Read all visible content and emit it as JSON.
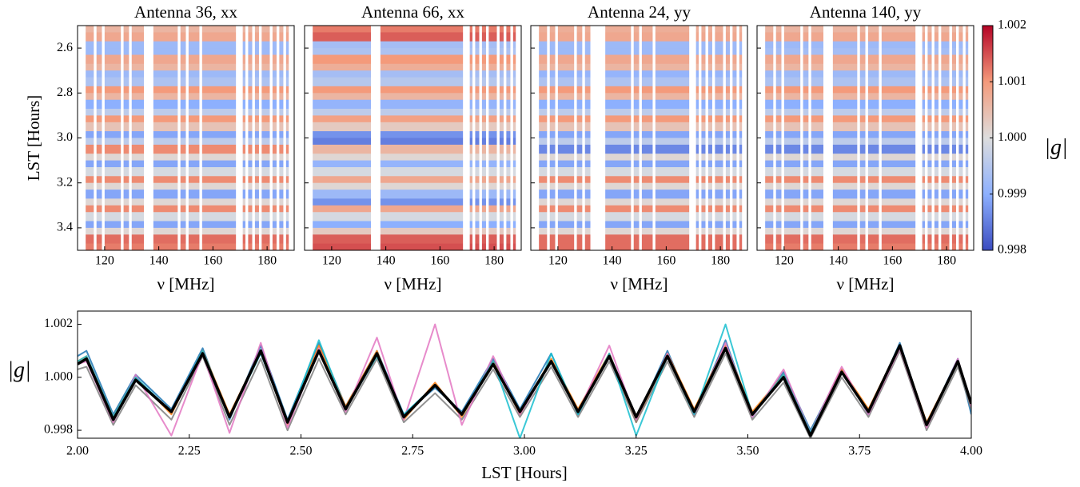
{
  "chart_data": [
    {
      "type": "heatmap",
      "title": "Antenna 36, xx",
      "x_label": "ν [MHz]",
      "y_label": "LST [Hours]",
      "xlim": [
        110,
        190
      ],
      "xticks": [
        120,
        140,
        160,
        180
      ],
      "ylim": [
        3.5,
        2.5
      ],
      "yticks": [
        2.6,
        2.8,
        {
          "value": 3.0,
          "label": "3.0"
        },
        3.2,
        3.4
      ],
      "y_edges": [
        2.5,
        2.53,
        2.57,
        2.6,
        2.63,
        2.67,
        2.7,
        2.73,
        2.77,
        2.8,
        2.83,
        2.87,
        2.9,
        2.93,
        2.97,
        3.0,
        3.03,
        3.07,
        3.1,
        3.13,
        3.17,
        3.2,
        3.23,
        3.27,
        3.3,
        3.33,
        3.37,
        3.4,
        3.43,
        3.47,
        3.5
      ],
      "values": [
        1.0006,
        1.0008,
        0.9992,
        0.9992,
        1.0008,
        1.0006,
        0.9992,
        0.9994,
        1.001,
        1.0006,
        0.999,
        0.9996,
        1.001,
        1.0004,
        0.9989,
        0.9996,
        1.0011,
        1.0001,
        0.9989,
        0.9999,
        1.0011,
        1.0001,
        0.9989,
        1.0001,
        1.0011,
        0.9999,
        0.9989,
        1.0001,
        1.0013,
        1.0012
      ],
      "flags": [
        [
          110,
          113
        ],
        [
          116,
          117
        ],
        [
          119,
          120
        ],
        [
          126,
          127
        ],
        [
          129,
          130
        ],
        [
          134.5,
          138
        ],
        [
          147,
          148
        ],
        [
          150,
          151
        ],
        [
          155,
          156
        ],
        [
          168.5,
          171
        ],
        [
          172,
          173
        ],
        [
          174.5,
          175.5
        ],
        [
          177,
          178
        ],
        [
          181,
          182
        ],
        [
          183.5,
          184.5
        ],
        [
          186,
          187
        ],
        [
          188,
          190
        ]
      ]
    },
    {
      "type": "heatmap",
      "title": "Antenna 66, xx",
      "x_label": "ν [MHz]",
      "xlim": [
        110,
        190
      ],
      "xticks": [
        120,
        140,
        160,
        180
      ],
      "ylim": [
        3.5,
        2.5
      ],
      "yticks": [
        2.6,
        2.8,
        {
          "value": 3.0,
          "label": "3.0"
        },
        3.2,
        3.4
      ],
      "y_edges": [
        2.5,
        2.53,
        2.57,
        2.6,
        2.63,
        2.67,
        2.7,
        2.73,
        2.77,
        2.8,
        2.83,
        2.87,
        2.9,
        2.93,
        2.97,
        3.0,
        3.03,
        3.07,
        3.1,
        3.13,
        3.17,
        3.2,
        3.23,
        3.27,
        3.3,
        3.33,
        3.37,
        3.4,
        3.43,
        3.47,
        3.5
      ],
      "values": [
        1.0012,
        1.0014,
        0.9993,
        0.9994,
        1.001,
        1.0007,
        0.9993,
        0.9995,
        1.001,
        1.0006,
        0.9991,
        0.9996,
        1.0009,
        1.0003,
        0.9987,
        0.9985,
        1.0006,
        1.0001,
        0.9991,
        0.9999,
        1.0008,
        1.0001,
        0.9992,
        0.9987,
        1.0008,
        0.9999,
        0.999,
        1.0003,
        1.0014,
        1.0015
      ],
      "flags": [
        [
          110,
          113
        ],
        [
          134.5,
          138
        ],
        [
          168.5,
          171
        ],
        [
          172,
          173
        ],
        [
          174.5,
          175.5
        ],
        [
          177,
          178
        ],
        [
          181,
          182
        ],
        [
          183.5,
          184.5
        ],
        [
          186,
          187
        ],
        [
          188,
          190
        ]
      ]
    },
    {
      "type": "heatmap",
      "title": "Antenna 24, yy",
      "x_label": "ν [MHz]",
      "xlim": [
        110,
        190
      ],
      "xticks": [
        120,
        140,
        160,
        180
      ],
      "ylim": [
        3.5,
        2.5
      ],
      "yticks": [
        2.6,
        2.8,
        {
          "value": 3.0,
          "label": "3.0"
        },
        3.2,
        3.4
      ],
      "y_edges": [
        2.5,
        2.53,
        2.57,
        2.6,
        2.63,
        2.67,
        2.7,
        2.73,
        2.77,
        2.8,
        2.83,
        2.87,
        2.9,
        2.93,
        2.97,
        3.0,
        3.03,
        3.07,
        3.1,
        3.13,
        3.17,
        3.2,
        3.23,
        3.27,
        3.3,
        3.33,
        3.37,
        3.4,
        3.43,
        3.47,
        3.5
      ],
      "values": [
        1.0007,
        1.0008,
        0.9992,
        0.9992,
        1.0008,
        1.0006,
        0.9991,
        0.9994,
        1.001,
        1.0006,
        0.999,
        0.9996,
        1.001,
        1.0004,
        0.9989,
        0.9996,
        0.9986,
        1.0001,
        0.9989,
        0.9999,
        1.0011,
        1.0001,
        0.9989,
        1.0001,
        1.0011,
        0.9999,
        0.9989,
        1.0001,
        1.0013,
        1.0013
      ],
      "flags": [
        [
          110,
          113
        ],
        [
          116,
          117
        ],
        [
          119,
          120
        ],
        [
          126,
          127
        ],
        [
          129,
          130
        ],
        [
          132,
          137.5
        ],
        [
          147,
          148
        ],
        [
          150,
          151
        ],
        [
          155,
          156
        ],
        [
          168.5,
          171
        ],
        [
          172,
          173
        ],
        [
          174.5,
          175.5
        ],
        [
          177,
          178
        ],
        [
          181,
          182
        ],
        [
          183.5,
          184.5
        ],
        [
          186,
          187
        ],
        [
          188,
          190
        ]
      ]
    },
    {
      "type": "heatmap",
      "title": "Antenna 140, yy",
      "x_label": "ν [MHz]",
      "xlim": [
        110,
        190
      ],
      "xticks": [
        120,
        140,
        160,
        180
      ],
      "ylim": [
        3.5,
        2.5
      ],
      "yticks": [
        2.6,
        2.8,
        {
          "value": 3.0,
          "label": "3.0"
        },
        3.2,
        3.4
      ],
      "y_edges": [
        2.5,
        2.53,
        2.57,
        2.6,
        2.63,
        2.67,
        2.7,
        2.73,
        2.77,
        2.8,
        2.83,
        2.87,
        2.9,
        2.93,
        2.97,
        3.0,
        3.03,
        3.07,
        3.1,
        3.13,
        3.17,
        3.2,
        3.23,
        3.27,
        3.3,
        3.33,
        3.37,
        3.4,
        3.43,
        3.47,
        3.5
      ],
      "values": [
        1.0006,
        1.0008,
        0.9992,
        0.9993,
        1.0008,
        1.0006,
        0.9992,
        0.9994,
        1.001,
        1.0006,
        0.999,
        0.9996,
        1.001,
        1.0004,
        0.9989,
        0.9996,
        0.9986,
        1.0001,
        0.9989,
        0.9999,
        1.0011,
        1.0001,
        0.9989,
        1.0001,
        1.0011,
        0.9999,
        0.9989,
        1.0001,
        1.0013,
        1.0012
      ],
      "flags": [
        [
          110,
          113
        ],
        [
          116,
          117
        ],
        [
          119,
          120
        ],
        [
          126,
          127
        ],
        [
          129,
          130
        ],
        [
          134.5,
          138
        ],
        [
          147,
          148
        ],
        [
          150,
          151
        ],
        [
          155,
          156
        ],
        [
          168.5,
          171
        ],
        [
          172,
          173
        ],
        [
          174.5,
          175.5
        ],
        [
          177,
          178
        ],
        [
          181,
          182
        ],
        [
          183.5,
          184.5
        ],
        [
          186,
          187
        ],
        [
          188,
          190
        ]
      ]
    },
    {
      "type": "colorbar",
      "label": "|g|",
      "lim": [
        0.998,
        1.002
      ],
      "ticks": [
        0.998,
        0.999,
        {
          "value": 1.0,
          "label": "1.000"
        },
        1.001,
        1.002
      ],
      "colormap": [
        "#3b4cc0",
        "#8db0fe",
        "#dddddd",
        "#f49a7b",
        "#b40426"
      ]
    },
    {
      "type": "line",
      "x_label": "LST [Hours]",
      "y_label": "|g|",
      "xlim": [
        2,
        4
      ],
      "ylim": [
        0.9977,
        1.0025
      ],
      "xticks": [
        {
          "value": 2,
          "label": "2.00"
        },
        2.25,
        {
          "value": 2.5,
          "label": "2.50"
        },
        2.75,
        {
          "value": 3,
          "label": "3.00"
        },
        3.25,
        {
          "value": 3.5,
          "label": "3.50"
        },
        3.75,
        {
          "value": 4,
          "label": "4.00"
        }
      ],
      "yticks": [
        0.998,
        {
          "value": 1.0,
          "label": "1.000"
        },
        1.002
      ],
      "x": [
        2.0,
        2.02,
        2.08,
        2.13,
        2.21,
        2.28,
        2.34,
        2.41,
        2.47,
        2.54,
        2.6,
        2.67,
        2.73,
        2.8,
        2.86,
        2.93,
        2.99,
        3.06,
        3.12,
        3.19,
        3.25,
        3.32,
        3.38,
        3.45,
        3.51,
        3.58,
        3.64,
        3.71,
        3.77,
        3.84,
        3.9,
        3.97,
        4.0
      ],
      "series": [
        {
          "color": "#1f77b4",
          "values": [
            1.0008,
            1.001,
            0.9986,
            1.0001,
            0.9988,
            1.0011,
            0.9984,
            1.0012,
            0.9984,
            1.0013,
            0.9989,
            1.001,
            0.9986,
            0.9996,
            0.9987,
            1.0007,
            0.9988,
            1.0009,
            0.9986,
            1.0009,
            0.9984,
            1.001,
            0.9986,
            1.0014,
            0.9985,
            1.0002,
            0.998,
            1.0003,
            0.9986,
            1.0013,
            0.9982,
            1.0007,
            0.9986
          ]
        },
        {
          "color": "#ff7f0e",
          "values": [
            1.0006,
            1.0008,
            0.9985,
            1.0,
            0.9986,
            1.001,
            0.9986,
            1.001,
            0.9982,
            1.0012,
            0.9989,
            1.001,
            0.9984,
            0.9998,
            0.9985,
            1.0006,
            0.9986,
            1.0007,
            0.9988,
            1.0009,
            0.9983,
            1.0009,
            0.9988,
            1.0012,
            0.9987,
            1.0001,
            0.9979,
            1.0003,
            0.9988,
            1.0012,
            0.9983,
            1.0006,
            0.9989
          ]
        },
        {
          "color": "#7f7f7f",
          "values": [
            1.0003,
            1.0004,
            0.9982,
            0.9997,
            0.9984,
            1.0008,
            0.9982,
            1.0007,
            0.998,
            1.0007,
            0.9986,
            1.0007,
            0.9983,
            0.9994,
            0.9984,
            1.0003,
            0.9985,
            1.0004,
            0.9985,
            1.0006,
            0.9983,
            1.0006,
            0.9985,
            1.0009,
            0.9984,
            0.9998,
            0.9977,
            1.0,
            0.9985,
            1.001,
            0.998,
            1.0004,
            0.9988
          ]
        },
        {
          "color": "#e377c2",
          "values": [
            1.0005,
            1.0006,
            0.9983,
            1.0001,
            0.9978,
            1.0009,
            0.9979,
            1.0013,
            0.9981,
            1.0011,
            0.9987,
            1.0015,
            0.9984,
            1.002,
            0.9982,
            1.0008,
            0.9986,
            1.0006,
            0.9987,
            1.0012,
            0.9984,
            1.0009,
            0.9986,
            1.0013,
            0.9985,
            1.0003,
            0.9979,
            1.0004,
            0.9986,
            1.0011,
            0.9981,
            1.0007,
            0.9989
          ]
        },
        {
          "color": "#17becf",
          "values": [
            1.0006,
            1.0008,
            0.9985,
            1.0,
            0.9987,
            1.001,
            0.9985,
            1.0009,
            0.9983,
            1.0014,
            0.9988,
            1.0008,
            0.9986,
            0.9997,
            0.9986,
            1.0006,
            0.9977,
            1.0009,
            0.9986,
            1.0009,
            0.9978,
            1.0008,
            0.9986,
            1.002,
            0.9986,
            1.0001,
            0.9979,
            1.0002,
            0.9987,
            1.0012,
            0.9982,
            1.0006,
            0.999
          ]
        },
        {
          "color": "#000000",
          "values": [
            1.0005,
            1.0007,
            0.9984,
            0.9999,
            0.9987,
            1.0009,
            0.9985,
            1.001,
            0.9983,
            1.001,
            0.9988,
            1.0009,
            0.9985,
            0.9997,
            0.9986,
            1.0005,
            0.9987,
            1.0006,
            0.9987,
            1.0008,
            0.9985,
            1.0008,
            0.9987,
            1.0011,
            0.9986,
            1.0,
            0.9978,
            1.0002,
            0.9987,
            1.0012,
            0.9982,
            1.0006,
            0.999
          ]
        }
      ]
    }
  ]
}
